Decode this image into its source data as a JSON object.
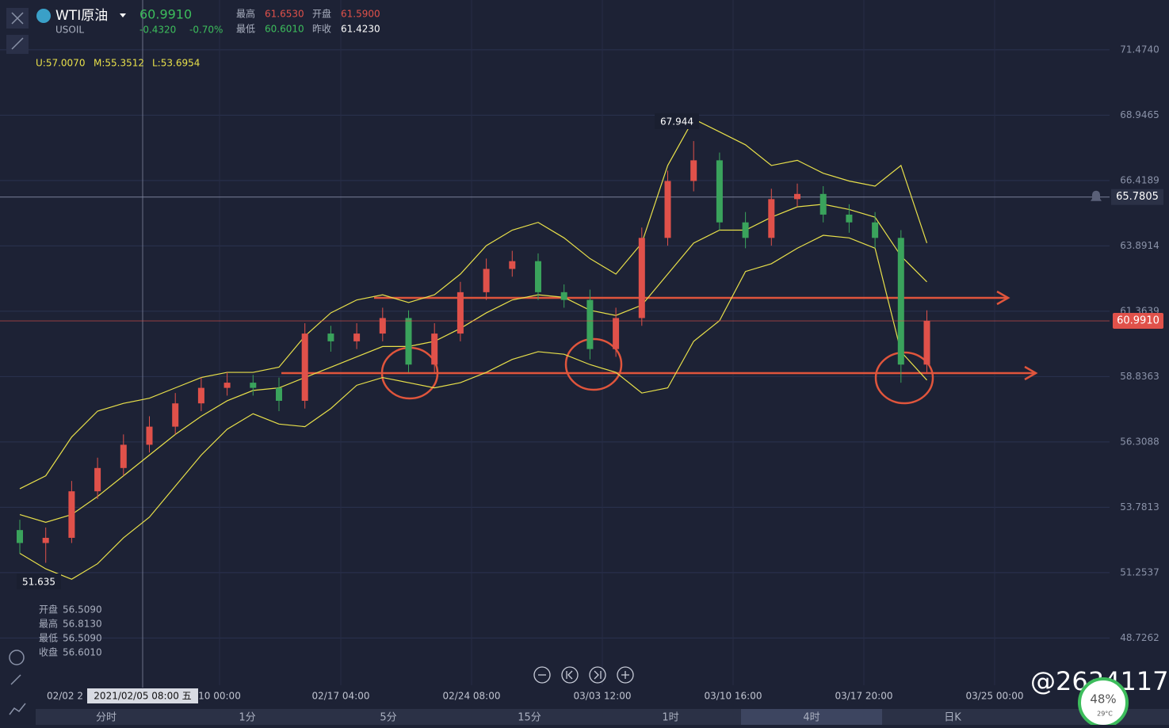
{
  "header": {
    "name": "WTI原油",
    "price": "60.9910",
    "symbol": "USOIL",
    "change": "-0.4320",
    "change_pct": "-0.70%",
    "stats": [
      [
        "最高",
        "61.6530"
      ],
      [
        "开盘",
        "61.5900"
      ],
      [
        "最低",
        "60.6010"
      ],
      [
        "昨收",
        "61.4230"
      ]
    ]
  },
  "indicator": [
    "U:57.0070",
    "M:55.3512",
    "L:53.6954"
  ],
  "tooltip": [
    [
      "开盘",
      "56.5090"
    ],
    [
      "最高",
      "56.8130"
    ],
    [
      "最低",
      "56.5090"
    ],
    [
      "收盘",
      "56.6010"
    ]
  ],
  "crosshair_label": "2021/02/05 08:00 五",
  "tabs": [
    "分时",
    "1分",
    "5分",
    "15分",
    "1时",
    "4时",
    "日K"
  ],
  "watermark": "@2634117",
  "gauge": {
    "value": "48%",
    "temp": "29°C"
  },
  "chart_data": {
    "type": "candlestick",
    "x_labels": [
      "02/02 2",
      "10 00:00",
      "02/17 04:00",
      "02/24 08:00",
      "03/03 12:00",
      "03/10 16:00",
      "03/17 20:00",
      "03/25 00:00"
    ],
    "open": [
      52.9,
      52.4,
      52.6,
      54.4,
      55.3,
      56.2,
      56.9,
      57.8,
      58.4,
      58.6,
      58.4,
      57.9,
      60.5,
      60.2,
      60.5,
      61.1,
      59.3,
      60.5,
      62.1,
      63.0,
      63.3,
      62.1,
      61.8,
      59.9,
      61.1,
      64.2,
      66.4,
      67.2,
      64.8,
      64.2,
      65.7,
      65.9,
      65.1,
      64.8,
      64.2,
      59.3
    ],
    "high": [
      53.3,
      53.0,
      54.8,
      55.7,
      56.6,
      57.3,
      58.2,
      58.8,
      59.0,
      58.9,
      58.8,
      60.9,
      60.8,
      60.9,
      61.5,
      61.4,
      60.9,
      62.5,
      63.4,
      63.7,
      63.6,
      62.4,
      62.2,
      61.5,
      64.6,
      66.8,
      67.944,
      67.5,
      65.2,
      66.1,
      66.3,
      66.2,
      65.5,
      65.2,
      64.5,
      61.4
    ],
    "low": [
      52.0,
      51.635,
      52.4,
      54.1,
      55.0,
      55.9,
      56.6,
      57.5,
      58.1,
      58.1,
      57.5,
      57.6,
      59.8,
      59.9,
      60.2,
      59.0,
      59.0,
      60.2,
      61.8,
      62.7,
      61.8,
      61.5,
      59.5,
      59.6,
      60.8,
      63.9,
      66.0,
      64.5,
      63.8,
      63.9,
      65.4,
      64.8,
      64.4,
      63.8,
      58.6,
      59.0
    ],
    "close": [
      52.4,
      52.6,
      54.4,
      55.3,
      56.2,
      56.9,
      57.8,
      58.4,
      58.6,
      58.4,
      57.9,
      60.5,
      60.2,
      60.5,
      61.1,
      59.3,
      60.5,
      62.1,
      63.0,
      63.3,
      62.1,
      61.8,
      59.9,
      61.1,
      64.2,
      66.4,
      67.2,
      64.8,
      64.2,
      65.7,
      65.9,
      65.1,
      64.8,
      64.2,
      59.3,
      60.991
    ],
    "up_color": "#e0514a",
    "down_color": "#3aa35c",
    "bands": {
      "color": "#e8e04a",
      "upper": [
        54.5,
        55.0,
        56.5,
        57.5,
        57.8,
        58.0,
        58.4,
        58.8,
        59.0,
        59.0,
        59.2,
        60.4,
        61.3,
        61.8,
        62.0,
        61.7,
        62.0,
        62.8,
        63.9,
        64.5,
        64.8,
        64.2,
        63.4,
        62.8,
        64.0,
        67.0,
        68.8,
        68.3,
        67.8,
        67.0,
        67.2,
        66.7,
        66.4,
        66.2,
        67.0,
        64.0
      ],
      "mid": [
        53.5,
        53.2,
        53.5,
        54.2,
        55.0,
        55.8,
        56.6,
        57.3,
        57.9,
        58.3,
        58.4,
        58.8,
        59.2,
        59.6,
        60.0,
        60.0,
        60.2,
        60.7,
        61.3,
        61.8,
        62.0,
        61.9,
        61.4,
        61.2,
        61.6,
        62.8,
        64.0,
        64.5,
        64.5,
        65.0,
        65.4,
        65.5,
        65.3,
        65.0,
        63.5,
        62.5
      ],
      "lower": [
        52.0,
        51.4,
        51.0,
        51.6,
        52.6,
        53.4,
        54.6,
        55.8,
        56.8,
        57.4,
        57.0,
        56.9,
        57.6,
        58.5,
        58.8,
        58.6,
        58.4,
        58.6,
        59.0,
        59.5,
        59.8,
        59.7,
        59.3,
        59.0,
        58.2,
        58.4,
        60.2,
        61.0,
        62.9,
        63.2,
        63.8,
        64.3,
        64.2,
        63.8,
        59.8,
        58.7
      ]
    },
    "alert_line": {
      "value": 65.7805,
      "label": "65.7805"
    },
    "ylim": [
      46.9,
      73.4
    ],
    "yticks": [
      {
        "value": 71.474,
        "label": "71.4740"
      },
      {
        "value": 68.9465,
        "label": "68.9465"
      },
      {
        "value": 66.4189,
        "label": "66.4189"
      },
      {
        "value": 63.8914,
        "label": "63.8914"
      },
      {
        "value": 61.3639,
        "label": "61.3639"
      },
      {
        "value": 58.8363,
        "label": "58.8363"
      },
      {
        "value": 56.3088,
        "label": "56.3088"
      },
      {
        "value": 53.7813,
        "label": "53.7813"
      },
      {
        "value": 51.2537,
        "label": "51.2537"
      },
      {
        "value": 48.7262,
        "label": "48.7262"
      }
    ],
    "grid": true
  }
}
